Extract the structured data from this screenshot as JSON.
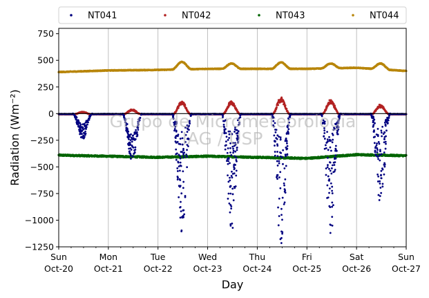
{
  "chart_data": {
    "type": "scatter",
    "xlabel": "Day",
    "ylabel": "Radiation (Wm⁻²)",
    "ylim": [
      -1250,
      800
    ],
    "xlim": [
      "2019-10-20",
      "2019-10-27"
    ],
    "yticks": [
      -1250,
      -1000,
      -750,
      -500,
      -250,
      0,
      250,
      500,
      750
    ],
    "ytick_labels": [
      "−1250",
      "−1000",
      "−750",
      "−500",
      "−250",
      "0",
      "250",
      "500",
      "750"
    ],
    "xticks": [
      {
        "date": "2019-10-20",
        "day": "Sun",
        "date_label": "Oct-20"
      },
      {
        "date": "2019-10-21",
        "day": "Mon",
        "date_label": "Oct-21"
      },
      {
        "date": "2019-10-22",
        "day": "Tue",
        "date_label": "Oct-22"
      },
      {
        "date": "2019-10-23",
        "day": "Wed",
        "date_label": "Oct-23"
      },
      {
        "date": "2019-10-24",
        "day": "Thu",
        "date_label": "Oct-24"
      },
      {
        "date": "2019-10-25",
        "day": "Fri",
        "date_label": "Oct-25"
      },
      {
        "date": "2019-10-26",
        "day": "Sat",
        "date_label": "Oct-26"
      },
      {
        "date": "2019-10-27",
        "day": "Sun",
        "date_label": "Oct-27"
      }
    ],
    "grid": "vertical",
    "legend_position": "top",
    "watermark": [
      "Grupo de Micrometeorologia",
      "IAG / USP"
    ],
    "series": [
      {
        "name": "NT041",
        "color": "#000080",
        "description": "daytime negative dips",
        "daily": [
          {
            "date": "2019-10-20",
            "min": -250
          },
          {
            "date": "2019-10-21",
            "min": -470
          },
          {
            "date": "2019-10-22",
            "min": -1120
          },
          {
            "date": "2019-10-23",
            "min": -1120
          },
          {
            "date": "2019-10-24",
            "min": -1250
          },
          {
            "date": "2019-10-25",
            "min": -1140
          },
          {
            "date": "2019-10-26",
            "min": -840
          }
        ]
      },
      {
        "name": "NT042",
        "color": "#b22222",
        "daily": [
          {
            "date": "2019-10-20",
            "max": 20
          },
          {
            "date": "2019-10-21",
            "max": 40
          },
          {
            "date": "2019-10-22",
            "max": 110
          },
          {
            "date": "2019-10-23",
            "max": 110
          },
          {
            "date": "2019-10-24",
            "max": 140
          },
          {
            "date": "2019-10-25",
            "max": 120
          },
          {
            "date": "2019-10-26",
            "max": 80
          }
        ]
      },
      {
        "name": "NT043",
        "color": "#006400",
        "baseline": -400,
        "x": [
          "2019-10-20",
          "2019-10-21",
          "2019-10-22",
          "2019-10-23",
          "2019-10-24",
          "2019-10-25",
          "2019-10-26",
          "2019-10-27"
        ],
        "values": [
          -390,
          -400,
          -410,
          -400,
          -410,
          -420,
          -385,
          -395
        ]
      },
      {
        "name": "NT044",
        "color": "#b8860b",
        "x": [
          "2019-10-20",
          "2019-10-21",
          "2019-10-22",
          "2019-10-23",
          "2019-10-24",
          "2019-10-25",
          "2019-10-26",
          "2019-10-27"
        ],
        "values": [
          390,
          405,
          410,
          420,
          420,
          420,
          430,
          400
        ],
        "daily_peaks": [
          {
            "date": "2019-10-22",
            "max": 485
          },
          {
            "date": "2019-10-23",
            "max": 470
          },
          {
            "date": "2019-10-24",
            "max": 480
          },
          {
            "date": "2019-10-25",
            "max": 470
          },
          {
            "date": "2019-10-26",
            "max": 470
          }
        ]
      }
    ]
  }
}
